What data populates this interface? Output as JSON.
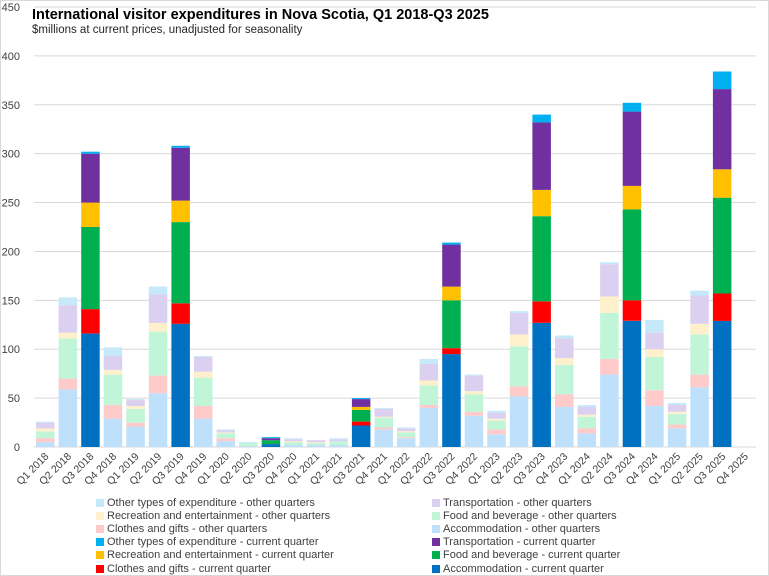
{
  "chart_data": {
    "type": "bar",
    "stacked": true,
    "title": "International  visitor expenditures  in Nova Scotia, Q1 2018-Q3 2025",
    "subtitle": "$millions at current prices, unadjusted for seasonality",
    "xlabel": "",
    "ylabel": "",
    "ylim": [
      0,
      450
    ],
    "yticks": [
      0,
      50,
      100,
      150,
      200,
      250,
      300,
      350,
      400,
      450
    ],
    "grid": true,
    "legend_position": "bottom",
    "categories": [
      "Q1 2018",
      "Q2 2018",
      "Q3 2018",
      "Q4 2018",
      "Q1 2019",
      "Q2 2019",
      "Q3 2019",
      "Q4 2019",
      "Q1 2020",
      "Q2 2020",
      "Q3 2020",
      "Q4 2020",
      "Q1 2021",
      "Q2 2021",
      "Q3 2021",
      "Q4 2021",
      "Q1 2022",
      "Q2 2022",
      "Q3 2022",
      "Q4 2022",
      "Q1 2023",
      "Q2 2023",
      "Q3 2023",
      "Q4 2023",
      "Q1 2024",
      "Q2 2024",
      "Q3 2024",
      "Q4 2024",
      "Q1 2025",
      "Q2 2025",
      "Q3 2025",
      "Q4 2025"
    ],
    "current_quarter_flags": [
      false,
      false,
      true,
      false,
      false,
      false,
      true,
      false,
      false,
      false,
      true,
      false,
      false,
      false,
      true,
      false,
      false,
      false,
      true,
      false,
      false,
      false,
      true,
      false,
      false,
      false,
      true,
      false,
      false,
      false,
      true,
      false
    ],
    "series": [
      {
        "name": "Accommodation",
        "values": [
          5,
          59,
          116,
          29,
          21,
          55,
          126,
          29,
          6,
          1,
          3,
          2,
          2,
          2,
          22,
          18,
          9,
          40,
          95,
          32,
          13,
          52,
          127,
          41,
          14,
          74,
          129,
          42,
          19,
          61,
          129,
          null
        ]
      },
      {
        "name": "Clothes and gifts",
        "values": [
          4,
          11,
          25,
          14,
          4,
          18,
          21,
          13,
          3,
          0,
          0,
          0,
          0,
          0,
          4,
          2,
          1,
          3,
          6,
          4,
          5,
          10,
          22,
          13,
          5,
          16,
          21,
          16,
          4,
          13,
          28,
          null
        ]
      },
      {
        "name": "Food and beverage",
        "values": [
          7,
          41,
          84,
          31,
          14,
          45,
          83,
          29,
          5,
          3,
          4,
          3,
          2,
          4,
          12,
          10,
          5,
          20,
          49,
          18,
          9,
          41,
          87,
          30,
          12,
          47,
          93,
          34,
          11,
          41,
          98,
          null
        ]
      },
      {
        "name": "Recreation and entertainment",
        "values": [
          3,
          6,
          25,
          5,
          3,
          9,
          22,
          6,
          1,
          0,
          0,
          1,
          1,
          0,
          3,
          1,
          1,
          5,
          14,
          3,
          2,
          12,
          27,
          7,
          2,
          17,
          24,
          8,
          2,
          11,
          29,
          null
        ]
      },
      {
        "name": "Transportation",
        "values": [
          6,
          28,
          50,
          14,
          6,
          29,
          54,
          15,
          2,
          0,
          2,
          2,
          2,
          2,
          8,
          8,
          3,
          17,
          43,
          16,
          6,
          22,
          69,
          20,
          8,
          33,
          76,
          17,
          7,
          29,
          82,
          null
        ]
      },
      {
        "name": "Other types of expenditure",
        "values": [
          1,
          8,
          2,
          9,
          1,
          8,
          2,
          1,
          1,
          1,
          1,
          1,
          0,
          1,
          1,
          1,
          1,
          5,
          2,
          1,
          2,
          2,
          8,
          3,
          2,
          2,
          9,
          13,
          2,
          5,
          18,
          null
        ]
      }
    ],
    "legend": [
      {
        "label": "Other types of expenditure - other quarters",
        "color": "#c6e9fa"
      },
      {
        "label": "Transportation - other quarters",
        "color": "#dcd0f0"
      },
      {
        "label": "Recreation and entertainment - other quarters",
        "color": "#fff0cc"
      },
      {
        "label": "Food and beverage - other quarters",
        "color": "#c0f5d8"
      },
      {
        "label": "Clothes and gifts - other quarters",
        "color": "#ffcaca"
      },
      {
        "label": "Accommodation - other quarters",
        "color": "#bfe0fa"
      },
      {
        "label": "Other types of expenditure - current quarter",
        "color": "#00b0f0"
      },
      {
        "label": "Transportation - current quarter",
        "color": "#7030a0"
      },
      {
        "label": "Recreation and entertainment - current quarter",
        "color": "#ffc000"
      },
      {
        "label": "Food and beverage - current quarter",
        "color": "#00b050"
      },
      {
        "label": "Clothes and gifts - current quarter",
        "color": "#ff0000"
      },
      {
        "label": "Accommodation - current quarter",
        "color": "#0070c0"
      }
    ],
    "colors": {
      "current": [
        "#0070c0",
        "#ff0000",
        "#00b050",
        "#ffc000",
        "#7030a0",
        "#00b0f0"
      ],
      "other": [
        "#bfe0fa",
        "#ffcaca",
        "#c0f5d8",
        "#fff0cc",
        "#dcd0f0",
        "#c6e9fa"
      ]
    }
  }
}
